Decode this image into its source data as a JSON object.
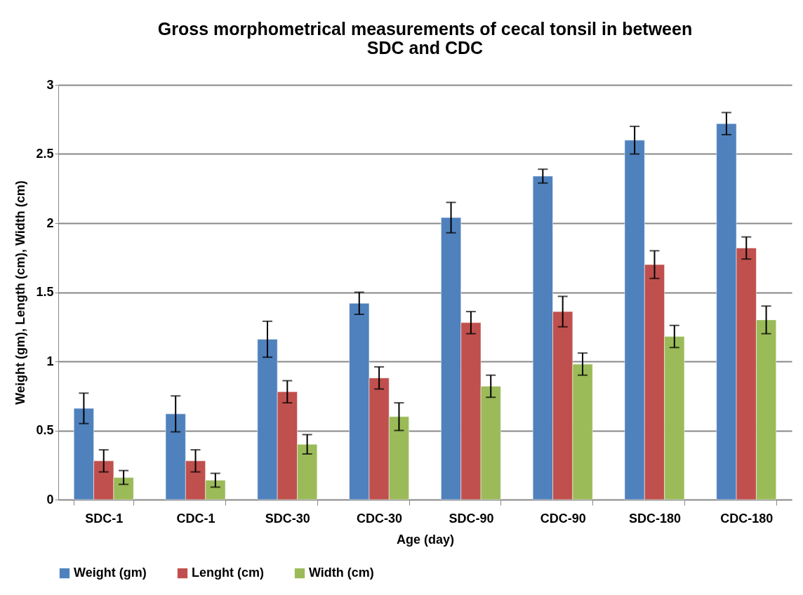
{
  "chart_data": {
    "type": "bar",
    "title": [
      "Gross morphometrical measurements of cecal tonsil in between",
      "SDC and CDC"
    ],
    "xlabel": "Age (day)",
    "ylabel": "Weight (gm), Length (cm), Width (cm)",
    "categories": [
      "SDC-1",
      "CDC-1",
      "SDC-30",
      "CDC-30",
      "SDC-90",
      "CDC-90",
      "SDC-180",
      "CDC-180"
    ],
    "series": [
      {
        "name": "Weight (gm)",
        "color": "#4f81bd",
        "values": [
          0.66,
          0.62,
          1.16,
          1.42,
          2.04,
          2.34,
          2.6,
          2.72
        ],
        "errors": [
          0.11,
          0.13,
          0.13,
          0.08,
          0.11,
          0.05,
          0.1,
          0.08
        ]
      },
      {
        "name": "Lenght (cm)",
        "color": "#c0504d",
        "values": [
          0.28,
          0.28,
          0.78,
          0.88,
          1.28,
          1.36,
          1.7,
          1.82
        ],
        "errors": [
          0.08,
          0.08,
          0.08,
          0.08,
          0.08,
          0.11,
          0.1,
          0.08
        ]
      },
      {
        "name": "Width (cm)",
        "color": "#9bbb59",
        "values": [
          0.16,
          0.14,
          0.4,
          0.6,
          0.82,
          0.98,
          1.18,
          1.3
        ],
        "errors": [
          0.05,
          0.05,
          0.07,
          0.1,
          0.08,
          0.08,
          0.08,
          0.1
        ]
      }
    ],
    "ylim": [
      0,
      3
    ],
    "yticks": [
      0,
      0.5,
      1,
      1.5,
      2,
      2.5,
      3
    ],
    "grid": "y",
    "legend": "bottom"
  }
}
